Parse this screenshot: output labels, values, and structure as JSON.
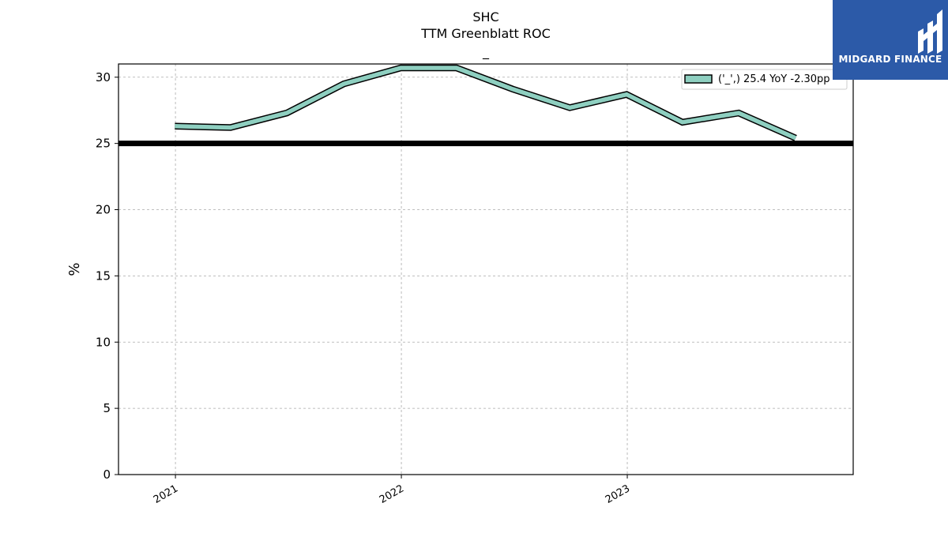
{
  "header": {
    "ticker": "SHC",
    "metric": "TTM Greenblatt ROC",
    "subtitle": "_"
  },
  "logo": {
    "text": "MIDGARD FINANCE",
    "color": "#2c5aa8"
  },
  "chart_data": {
    "type": "line",
    "title": "SHC",
    "subtitle": "TTM Greenblatt ROC",
    "xlabel": "",
    "ylabel": "%",
    "ylim": [
      0,
      31
    ],
    "yticks": [
      0,
      5,
      10,
      15,
      20,
      25,
      30
    ],
    "xticks": [
      "2021",
      "2022",
      "2023"
    ],
    "x": [
      "2020-12-31",
      "2021-03-31",
      "2021-06-30",
      "2021-09-30",
      "2021-12-31",
      "2022-03-31",
      "2022-06-30",
      "2022-09-30",
      "2022-12-31",
      "2023-03-31",
      "2023-06-30",
      "2023-09-30"
    ],
    "series": [
      {
        "name": "('_',) 25.4 YoY -2.30pp",
        "values": [
          26.3,
          26.2,
          27.3,
          29.5,
          30.7,
          30.7,
          29.1,
          27.7,
          28.7,
          26.6,
          27.3,
          25.4
        ],
        "color": "#8ecfc0",
        "edge_color": "#000000"
      }
    ],
    "hlines": [
      {
        "value": 25,
        "color": "#000000"
      }
    ],
    "grid": true,
    "legend_position": "top-right"
  }
}
